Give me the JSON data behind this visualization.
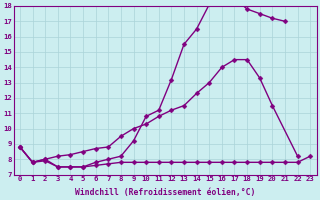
{
  "line1_x": [
    0,
    1,
    2,
    3,
    4,
    5,
    6,
    7,
    8,
    9,
    10,
    11,
    12,
    13,
    14,
    15,
    16,
    17,
    18,
    19,
    20,
    21
  ],
  "line1_y": [
    8.8,
    7.8,
    8.0,
    7.5,
    7.5,
    7.5,
    7.8,
    8.0,
    8.2,
    9.2,
    10.8,
    11.2,
    13.2,
    15.5,
    16.5,
    18.1,
    18.2,
    18.5,
    17.8,
    17.5,
    17.2,
    17.0
  ],
  "line2_x": [
    0,
    1,
    2,
    3,
    4,
    5,
    6,
    7,
    8,
    9,
    10,
    11,
    12,
    13,
    14,
    15,
    16,
    17,
    18,
    19,
    20,
    22
  ],
  "line2_y": [
    8.8,
    7.8,
    8.0,
    8.2,
    8.3,
    8.5,
    8.7,
    8.8,
    9.5,
    10.0,
    10.3,
    10.8,
    11.2,
    11.5,
    12.3,
    13.0,
    14.0,
    14.5,
    14.5,
    13.3,
    11.5,
    8.2
  ],
  "line3_x": [
    0,
    1,
    2,
    3,
    4,
    5,
    6,
    7,
    8,
    9,
    10,
    11,
    12,
    13,
    14,
    15,
    16,
    17,
    18,
    19,
    20,
    21,
    22,
    23
  ],
  "line3_y": [
    8.8,
    7.8,
    7.9,
    7.5,
    7.5,
    7.5,
    7.6,
    7.7,
    7.8,
    7.8,
    7.8,
    7.8,
    7.8,
    7.8,
    7.8,
    7.8,
    7.8,
    7.8,
    7.8,
    7.8,
    7.8,
    7.8,
    7.8,
    8.2
  ],
  "xlim_min": -0.5,
  "xlim_max": 23.5,
  "ylim_min": 7,
  "ylim_max": 18,
  "xlabel": "Windchill (Refroidissement éolien,°C)",
  "line_color": "#800080",
  "bg_color": "#cceef0",
  "grid_color": "#aad4d8",
  "marker_size": 2.5,
  "line_width": 1.0,
  "tick_fontsize": 5.2,
  "xlabel_fontsize": 5.8
}
